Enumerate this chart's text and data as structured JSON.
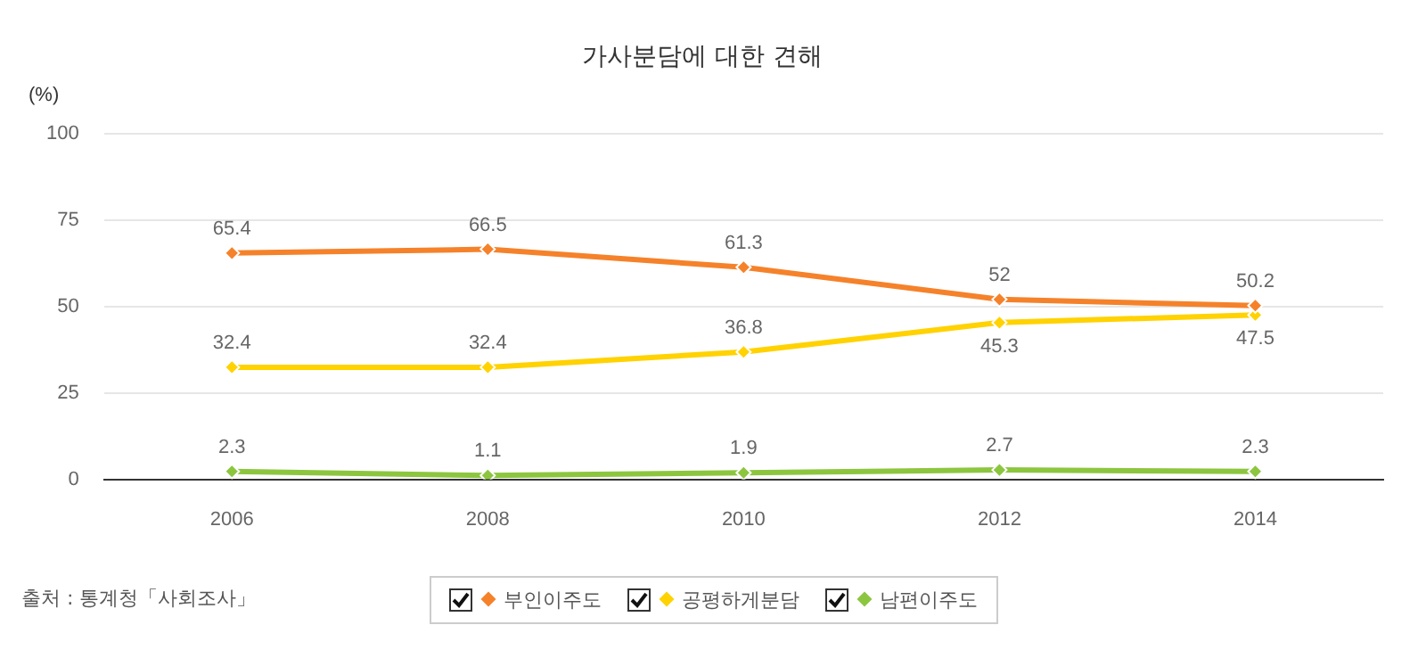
{
  "chart_data": {
    "type": "line",
    "title": "가사분담에 대한 견해",
    "ylabel": "(%)",
    "categories": [
      "2006",
      "2008",
      "2010",
      "2012",
      "2014"
    ],
    "series": [
      {
        "name": "부인이주도",
        "color": "#f5822a",
        "values": [
          65.4,
          66.5,
          61.3,
          52,
          50.2
        ]
      },
      {
        "name": "공평하게분담",
        "color": "#ffd200",
        "values": [
          32.4,
          32.4,
          36.8,
          45.3,
          47.5
        ]
      },
      {
        "name": "남편이주도",
        "color": "#8cc63f",
        "values": [
          2.3,
          1.1,
          1.9,
          2.7,
          2.3
        ]
      }
    ],
    "ylim": [
      0,
      100
    ],
    "yticks": [
      0,
      25,
      50,
      75,
      100
    ],
    "grid": "y",
    "legend": "bottom",
    "marker": "diamond",
    "data_labels": true,
    "annotations": [
      "출처 : 통계청「사회조사」"
    ]
  }
}
